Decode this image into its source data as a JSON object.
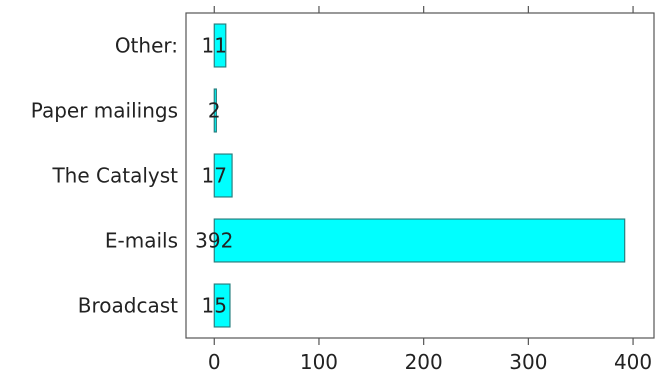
{
  "chart_data": {
    "type": "bar",
    "orientation": "horizontal",
    "categories": [
      "Other:",
      "Paper mailings",
      "The Catalyst",
      "E-mails",
      "Broadcast"
    ],
    "values": [
      11,
      2,
      17,
      392,
      15
    ],
    "value_labels": [
      "11",
      "2",
      "17",
      "392",
      "15"
    ],
    "x_ticks": [
      0,
      100,
      200,
      300,
      400
    ],
    "x_tick_labels": [
      "0",
      "100",
      "200",
      "300",
      "400"
    ],
    "xlim": [
      -27,
      420
    ],
    "title": "",
    "xlabel": "",
    "ylabel": "",
    "grid": false,
    "legend": "none",
    "colors": {
      "bar_fill": "#00ffff",
      "bar_stroke": "#2a7f7f",
      "axis": "#555555",
      "text": "#222222"
    }
  }
}
